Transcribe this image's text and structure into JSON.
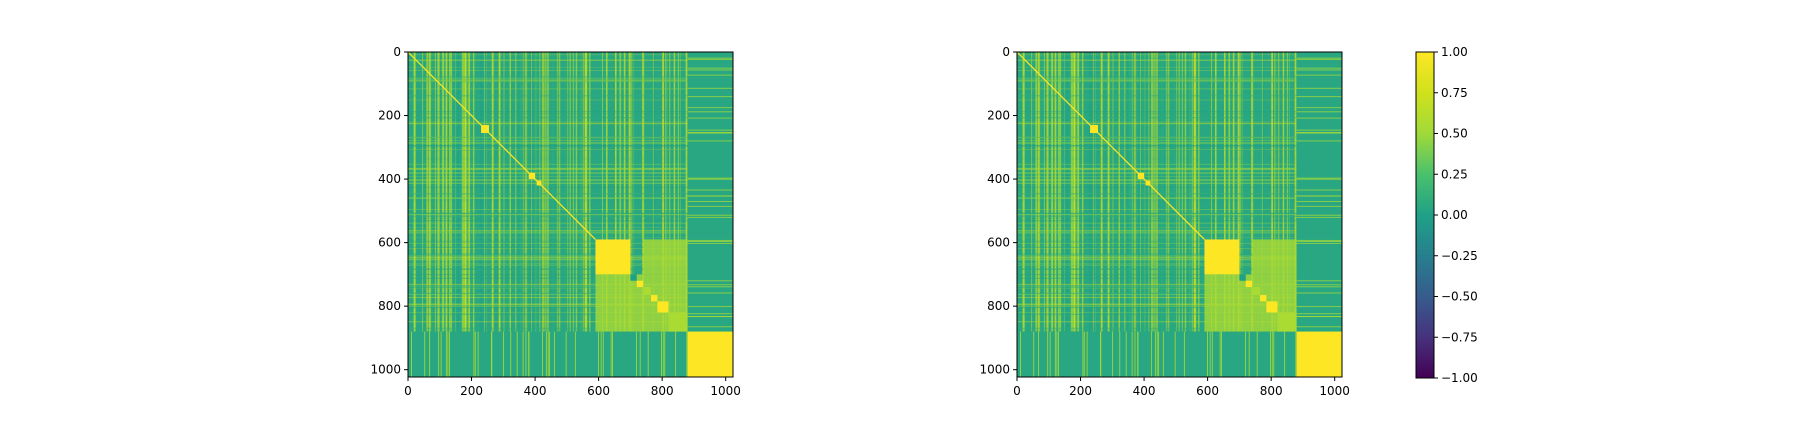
{
  "chart_data": [
    {
      "type": "heatmap",
      "title": "",
      "xlabel": "",
      "ylabel": "",
      "xlim": [
        0,
        1023
      ],
      "ylim": [
        1023,
        0
      ],
      "xticks": [
        0,
        200,
        400,
        600,
        800,
        1000
      ],
      "yticks": [
        0,
        200,
        400,
        600,
        800,
        1000
      ],
      "value_range": [
        -1.0,
        1.0
      ],
      "colormap": "viridis",
      "diagonal_value": 1.0,
      "blocks": [
        {
          "from": 0,
          "to": 590,
          "level": 0.35
        },
        {
          "from": 590,
          "to": 700,
          "level": 1.0
        },
        {
          "from": 700,
          "to": 720,
          "level": 0.0
        },
        {
          "from": 720,
          "to": 740,
          "level": 1.0
        },
        {
          "from": 740,
          "to": 765,
          "level": 0.55
        },
        {
          "from": 765,
          "to": 785,
          "level": 1.0
        },
        {
          "from": 785,
          "to": 820,
          "level": 1.0
        },
        {
          "from": 820,
          "to": 880,
          "level": 0.55
        },
        {
          "from": 880,
          "to": 1023,
          "level": 1.0
        }
      ]
    },
    {
      "type": "heatmap",
      "title": "",
      "xlabel": "",
      "ylabel": "",
      "xlim": [
        0,
        1023
      ],
      "ylim": [
        1023,
        0
      ],
      "xticks": [
        0,
        200,
        400,
        600,
        800,
        1000
      ],
      "yticks": [
        0,
        200,
        400,
        600,
        800,
        1000
      ],
      "value_range": [
        -1.0,
        1.0
      ],
      "colormap": "viridis",
      "diagonal_value": 1.0,
      "blocks": [
        {
          "from": 0,
          "to": 590,
          "level": 0.35
        },
        {
          "from": 590,
          "to": 700,
          "level": 1.0
        },
        {
          "from": 700,
          "to": 720,
          "level": 0.0
        },
        {
          "from": 720,
          "to": 740,
          "level": 1.0
        },
        {
          "from": 740,
          "to": 765,
          "level": 0.55
        },
        {
          "from": 765,
          "to": 785,
          "level": 1.0
        },
        {
          "from": 785,
          "to": 820,
          "level": 1.0
        },
        {
          "from": 820,
          "to": 880,
          "level": 0.55
        },
        {
          "from": 880,
          "to": 1023,
          "level": 1.0
        }
      ]
    }
  ],
  "colorbar": {
    "colormap": "viridis",
    "range": [
      -1.0,
      1.0
    ],
    "ticks": [
      "1.00",
      "0.75",
      "0.50",
      "0.25",
      "0.00",
      "−0.25",
      "−0.50",
      "−0.75",
      "−1.00"
    ]
  },
  "colors": {
    "viridis_min": "#440154",
    "viridis_mid": "#21918c",
    "viridis_max": "#fde725"
  }
}
